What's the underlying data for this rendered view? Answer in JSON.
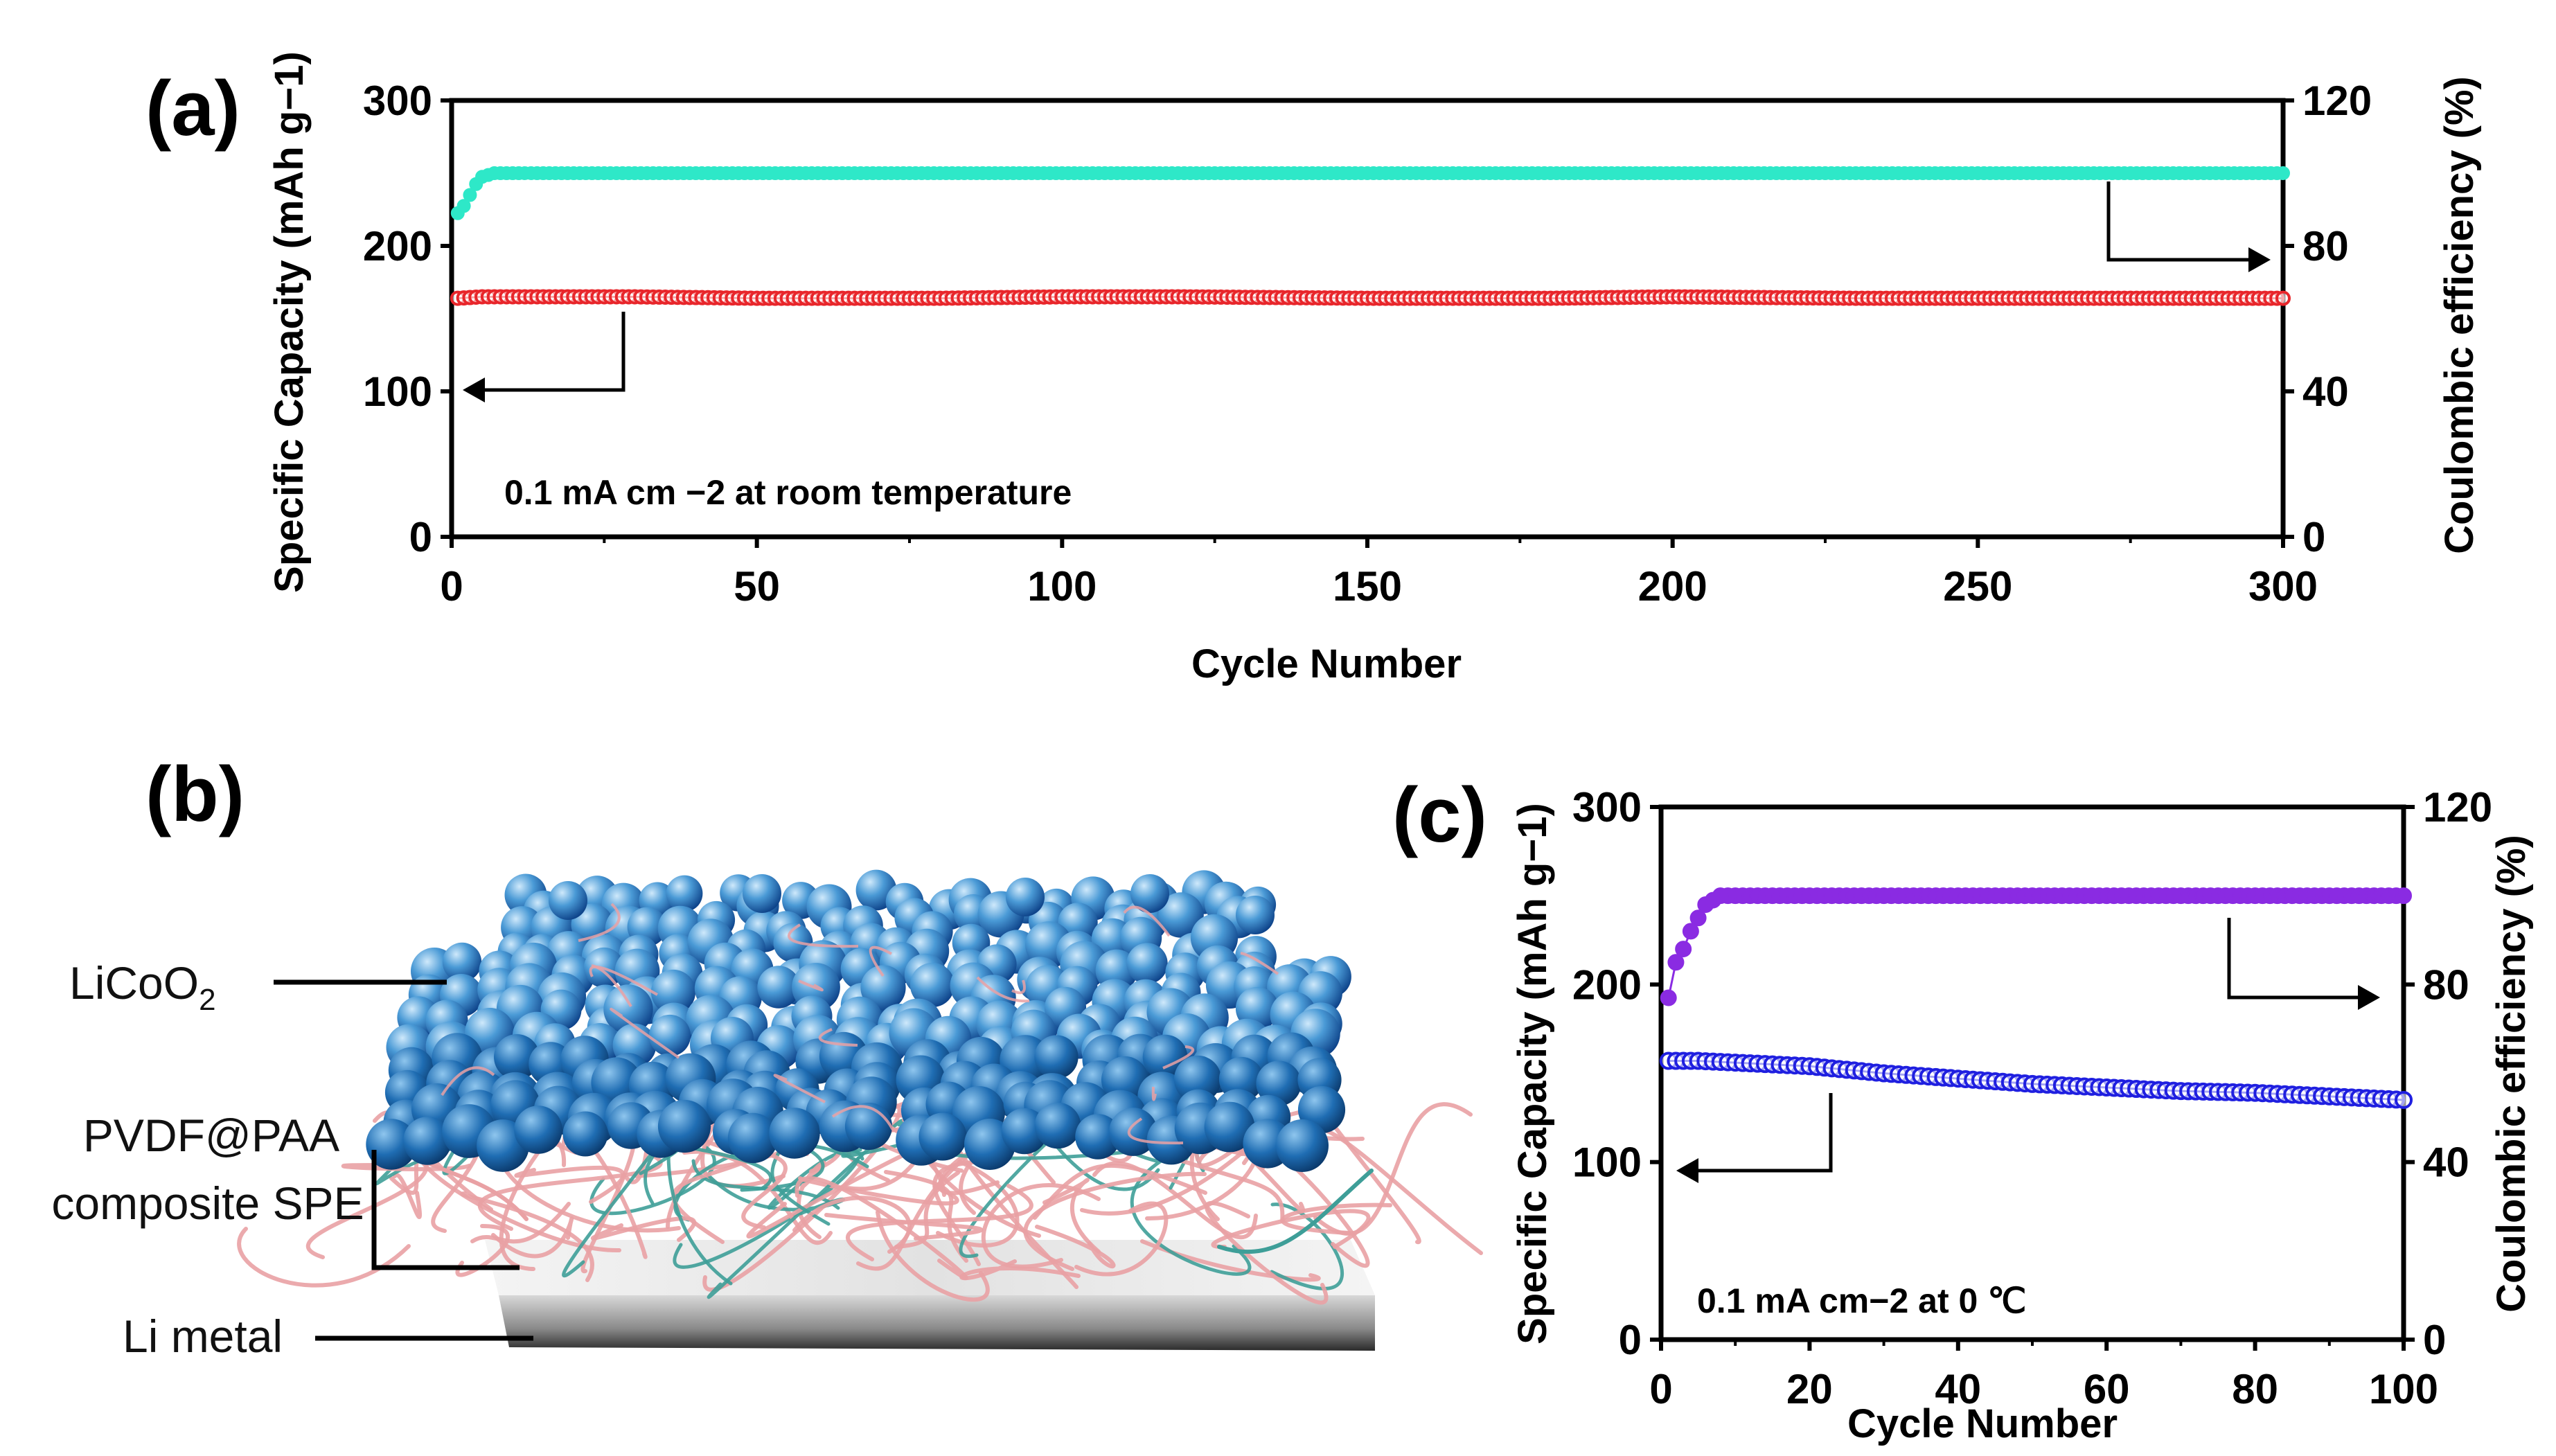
{
  "panels": {
    "a": "(a)",
    "b": "(b)",
    "c": "(c)"
  },
  "diagram_b": {
    "labels": {
      "cathode": "LiCoO",
      "cathode_sub": "2",
      "electrolyte_line1": "PVDF@PAA",
      "electrolyte_line2": "composite SPE",
      "anode": "Li metal"
    },
    "colors": {
      "particle_dark": "#0b3f86",
      "particle_mid": "#2e7fc4",
      "particle_light": "#9fd0f0",
      "fiber_pink": "#e9a1a4",
      "fiber_teal": "#3e9e98",
      "li_metal": "#3b3b3b"
    }
  },
  "chart_data": [
    {
      "id": "a",
      "type": "scatter",
      "title": "",
      "annotation": "0.1 mA cm −2 at room temperature",
      "xlabel": "Cycle Number",
      "ylabel_left": "Specific Capacity (mAh g−1)",
      "ylabel_right": "Coulombic efficiency (%)",
      "xlim": [
        0,
        300
      ],
      "ylim_left": [
        0,
        300
      ],
      "ylim_right": [
        0,
        120
      ],
      "xticks": [
        0,
        50,
        100,
        150,
        200,
        250,
        300
      ],
      "yticks_left": [
        0,
        100,
        200,
        300
      ],
      "yticks_right": [
        0,
        40,
        80,
        120
      ],
      "grid": false,
      "series": [
        {
          "axis": "left",
          "color": "#e8262b",
          "x": [
            1,
            5,
            10,
            20,
            30,
            50,
            80,
            100,
            120,
            150,
            180,
            200,
            230,
            250,
            280,
            300
          ],
          "values": [
            164,
            165,
            165,
            165,
            165,
            164,
            164,
            165,
            165,
            164,
            164,
            165,
            164,
            164,
            164,
            164
          ]
        },
        {
          "axis": "right",
          "color": "#2ee8c8",
          "x": [
            1,
            2,
            3,
            4,
            5,
            7,
            10,
            20,
            50,
            100,
            150,
            200,
            250,
            300
          ],
          "values": [
            89,
            91,
            94,
            97,
            99,
            100,
            100,
            100,
            100,
            100,
            100,
            100,
            100,
            100
          ]
        }
      ]
    },
    {
      "id": "c",
      "type": "scatter",
      "title": "",
      "annotation": "0.1 mA cm−2 at 0 ℃",
      "xlabel": "Cycle Number",
      "ylabel_left": "Specific Capacity (mAh g−1)",
      "ylabel_right": "Coulombic efficiency (%)",
      "xlim": [
        0,
        100
      ],
      "ylim_left": [
        0,
        300
      ],
      "ylim_right": [
        0,
        120
      ],
      "xticks": [
        0,
        20,
        40,
        60,
        80,
        100
      ],
      "yticks_left": [
        0,
        100,
        200,
        300
      ],
      "yticks_right": [
        0,
        40,
        80,
        120
      ],
      "grid": false,
      "series": [
        {
          "axis": "left",
          "color": "#1f1fe0",
          "x": [
            1,
            5,
            10,
            20,
            30,
            40,
            50,
            60,
            70,
            80,
            90,
            100
          ],
          "values": [
            157,
            157,
            156,
            154,
            150,
            147,
            144,
            142,
            140,
            139,
            137,
            135
          ]
        },
        {
          "axis": "right",
          "color": "#8a2be2",
          "x": [
            1,
            2,
            3,
            4,
            5,
            6,
            7,
            8,
            10,
            20,
            40,
            60,
            80,
            100
          ],
          "values": [
            77,
            85,
            88,
            92,
            95,
            98,
            99,
            100,
            100,
            100,
            100,
            100,
            100,
            100
          ]
        }
      ]
    }
  ]
}
